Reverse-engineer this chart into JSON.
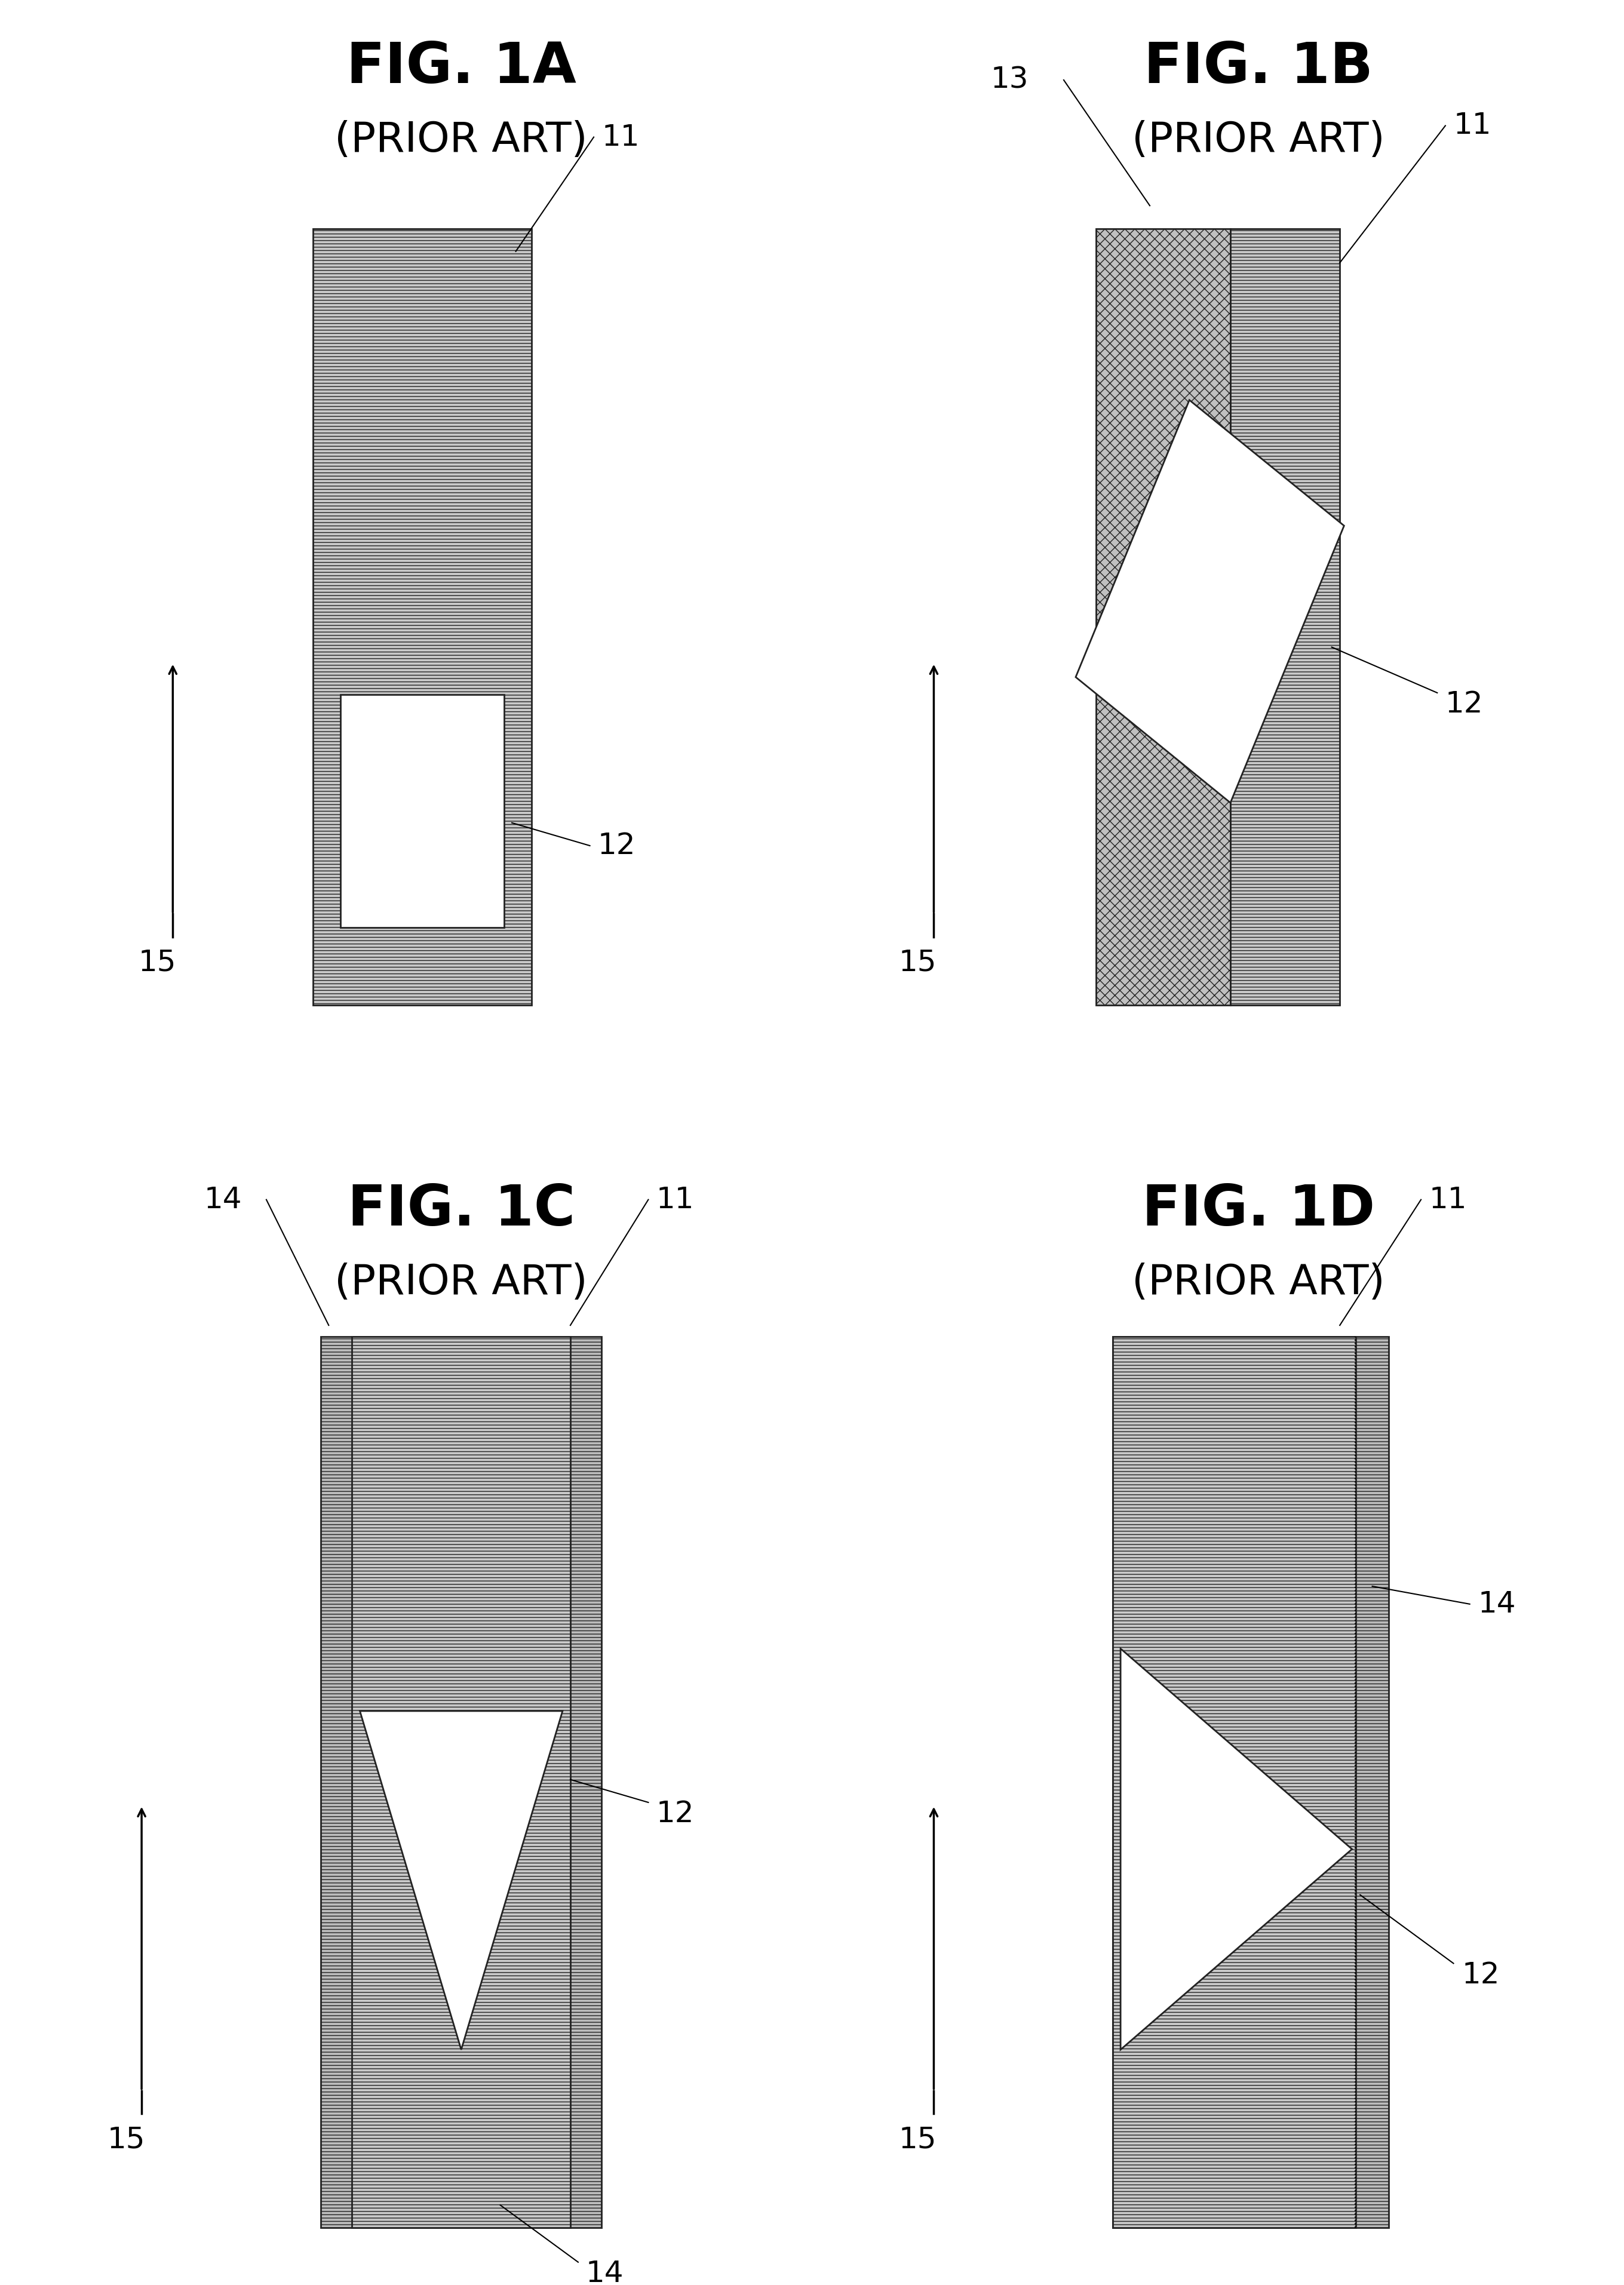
{
  "fig_titles": [
    "FIG. 1A",
    "FIG. 1B",
    "FIG. 1C",
    "FIG. 1D"
  ],
  "fig_subtitles": [
    "(PRIOR ART)",
    "(PRIOR ART)",
    "(PRIOR ART)",
    "(PRIOR ART)"
  ],
  "bg_color": "#ffffff",
  "hatch_fc": "#c8c8c8",
  "hatch_ec": "#222222",
  "label_color": "#000000",
  "title_fontsize": 68,
  "subtitle_fontsize": 50,
  "label_fontsize": 36,
  "note_label_fontsize": 36,
  "lw_main": 2.0,
  "lw_leader": 1.5
}
